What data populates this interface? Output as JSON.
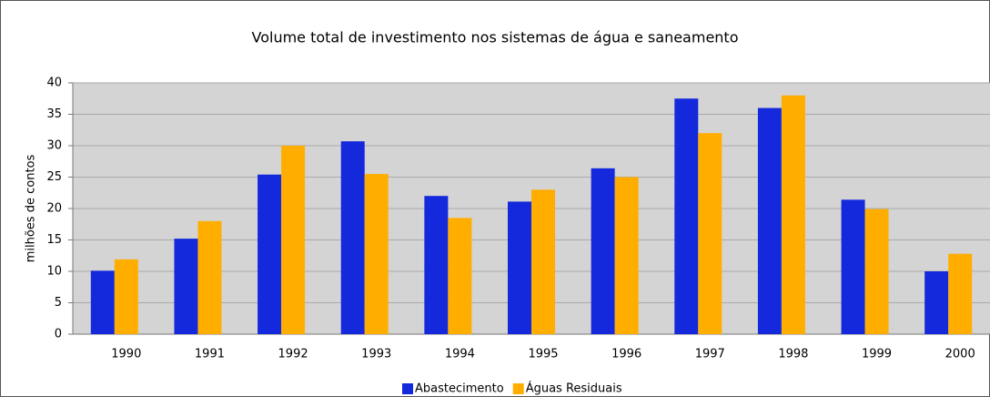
{
  "chart_data": {
    "type": "bar",
    "title": "Volume total de investimento nos sistemas de água e saneamento",
    "y_label": "milhões de contos",
    "categories": [
      "1990",
      "1991",
      "1992",
      "1993",
      "1994",
      "1995",
      "1996",
      "1997",
      "1998",
      "1999",
      "2000"
    ],
    "series": [
      {
        "name": "Abastecimento",
        "color": "#1428dc",
        "values": [
          10.1,
          15.2,
          25.4,
          30.7,
          22,
          21.1,
          26.4,
          37.5,
          36,
          21.4,
          10
        ]
      },
      {
        "name": "Águas Residuais",
        "color": "#ffae00",
        "values": [
          11.9,
          18,
          30,
          25.5,
          18.5,
          23,
          25,
          32,
          38,
          19.9,
          12.8
        ]
      }
    ],
    "ylim": [
      0,
      40
    ],
    "yticks": [
      0,
      5,
      10,
      15,
      20,
      25,
      30,
      35,
      40
    ],
    "grid": true,
    "legend": "bottom"
  }
}
